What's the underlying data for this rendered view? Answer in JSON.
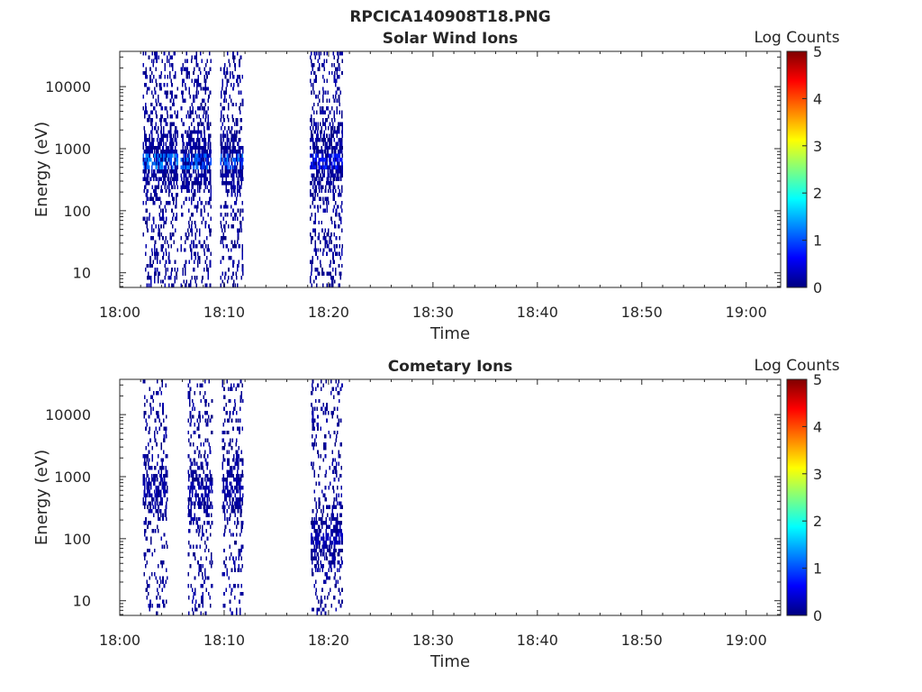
{
  "figure_title": "RPCICA140908T18.PNG",
  "colormap": [
    "#00007f",
    "#0000ff",
    "#007fff",
    "#00ffff",
    "#7fff7f",
    "#ffff00",
    "#ff7f00",
    "#ff0000",
    "#7f0000"
  ],
  "chart_data": [
    {
      "type": "heatmap",
      "title": "Solar Wind Ions",
      "xlabel": "Time",
      "ylabel": "Energy (eV)",
      "xticks": [
        "18:00",
        "18:10",
        "18:20",
        "18:30",
        "18:40",
        "18:50",
        "19:00"
      ],
      "xlim_minutes": [
        0,
        63.3
      ],
      "yticks": [
        10,
        100,
        1000,
        10000
      ],
      "ylim": [
        5.8,
        37000
      ],
      "yscale": "log",
      "colorbar": {
        "label": "Log Counts",
        "ticks": [
          0,
          1,
          2,
          3,
          4,
          5
        ],
        "range": [
          0,
          5
        ]
      },
      "bursts": [
        {
          "minute_start": 2.2,
          "minute_end": 5.5,
          "max_log_counts": 1.4,
          "peak_energy_eV": 650
        },
        {
          "minute_start": 5.8,
          "minute_end": 8.7,
          "max_log_counts": 1.3,
          "peak_energy_eV": 650
        },
        {
          "minute_start": 9.6,
          "minute_end": 11.8,
          "max_log_counts": 1.3,
          "peak_energy_eV": 650
        },
        {
          "minute_start": 18.2,
          "minute_end": 21.3,
          "max_log_counts": 0.9,
          "peak_energy_eV": 650
        }
      ]
    },
    {
      "type": "heatmap",
      "title": "Cometary Ions",
      "xlabel": "Time",
      "ylabel": "Energy (eV)",
      "xticks": [
        "18:00",
        "18:10",
        "18:20",
        "18:30",
        "18:40",
        "18:50",
        "19:00"
      ],
      "xlim_minutes": [
        0,
        63.3
      ],
      "yticks": [
        10,
        100,
        1000,
        10000
      ],
      "ylim": [
        5.8,
        37000
      ],
      "yscale": "log",
      "colorbar": {
        "label": "Log Counts",
        "ticks": [
          0,
          1,
          2,
          3,
          4,
          5
        ],
        "range": [
          0,
          5
        ]
      },
      "bursts": [
        {
          "minute_start": 2.2,
          "minute_end": 4.5,
          "max_log_counts": 0.3,
          "peak_energy_eV": 600
        },
        {
          "minute_start": 6.5,
          "minute_end": 8.8,
          "max_log_counts": 0.3,
          "peak_energy_eV": 600
        },
        {
          "minute_start": 9.8,
          "minute_end": 11.8,
          "max_log_counts": 0.3,
          "peak_energy_eV": 600
        },
        {
          "minute_start": 18.3,
          "minute_end": 21.3,
          "max_log_counts": 0.4,
          "peak_energy_eV": 100
        }
      ]
    }
  ]
}
